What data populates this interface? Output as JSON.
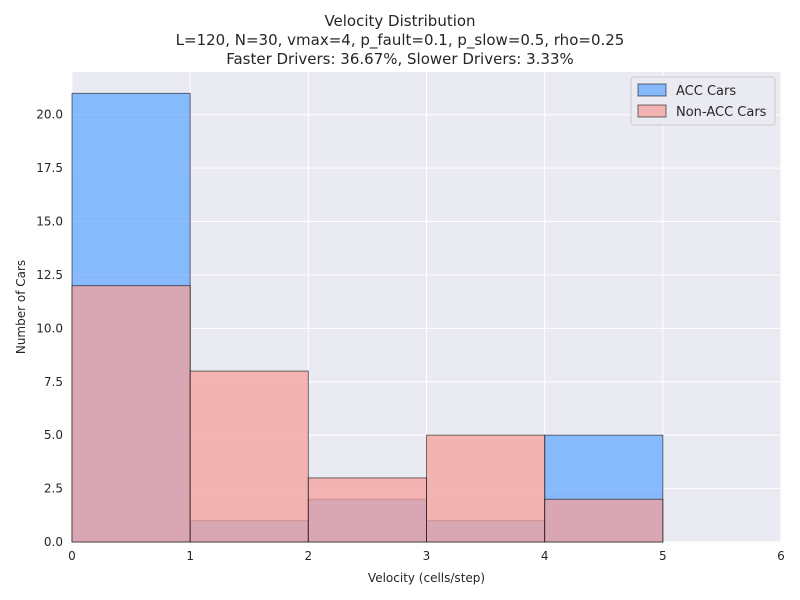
{
  "chart_data": {
    "type": "bar",
    "title": "Velocity Distribution",
    "subtitle_lines": [
      "L=120, N=30, vmax=4, p_fault=0.1, p_slow=0.5, rho=0.25",
      "Faster Drivers: 36.67%, Slower Drivers: 3.33%"
    ],
    "xlabel": "Velocity (cells/step)",
    "ylabel": "Number of Cars",
    "xlim": [
      0,
      6
    ],
    "ylim": [
      0,
      22
    ],
    "x_ticks": [
      "0",
      "1",
      "2",
      "3",
      "4",
      "5",
      "6"
    ],
    "y_ticks": [
      "0.0",
      "2.5",
      "5.0",
      "7.5",
      "10.0",
      "12.5",
      "15.0",
      "17.5",
      "20.0"
    ],
    "bin_edges": [
      0,
      1,
      2,
      3,
      4,
      5
    ],
    "series": [
      {
        "name": "ACC Cars",
        "values": [
          21,
          1,
          2,
          1,
          5
        ],
        "color": "#66aaff",
        "opacity": 0.75
      },
      {
        "name": "Non-ACC Cars",
        "values": [
          12,
          8,
          3,
          5,
          2
        ],
        "color": "#f4a09c",
        "opacity": 0.75
      }
    ],
    "grid": true,
    "legend_position": "top-right",
    "background": "#eaeaf2"
  }
}
